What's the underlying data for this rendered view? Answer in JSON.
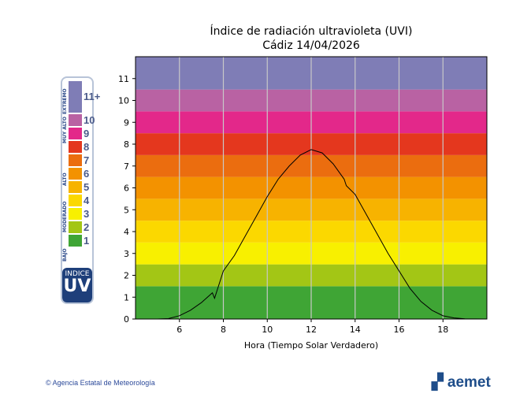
{
  "chart_data": {
    "type": "line",
    "title": "Índice de radiación ultravioleta (UVI)",
    "subtitle": "Cádiz 14/04/2026",
    "xlabel": "Hora (Tiempo Solar Verdadero)",
    "ylabel": "",
    "xlim": [
      4,
      20
    ],
    "ylim": [
      0,
      12
    ],
    "xticks": [
      6,
      8,
      10,
      12,
      14,
      16,
      18
    ],
    "yticks": [
      0,
      1,
      2,
      3,
      4,
      5,
      6,
      7,
      8,
      9,
      10,
      11
    ],
    "grid": "vertical",
    "line_color": "#000000",
    "x": [
      5,
      5.5,
      6,
      6.5,
      7,
      7.5,
      7.6,
      8,
      8.5,
      9,
      9.5,
      10,
      10.5,
      11,
      11.5,
      12,
      12.5,
      13,
      13.5,
      13.6,
      14,
      14.5,
      15,
      15.5,
      16,
      16.5,
      17,
      17.5,
      18,
      18.5,
      19,
      20
    ],
    "y": [
      0,
      0.02,
      0.15,
      0.4,
      0.75,
      1.2,
      0.95,
      2.2,
      2.9,
      3.8,
      4.7,
      5.6,
      6.4,
      7.0,
      7.5,
      7.75,
      7.6,
      7.1,
      6.4,
      6.1,
      5.7,
      4.8,
      3.9,
      3.0,
      2.2,
      1.4,
      0.8,
      0.4,
      0.15,
      0.05,
      0.01,
      0
    ],
    "bands": [
      {
        "from": 0,
        "to": 1.5,
        "color": "#3fa535"
      },
      {
        "from": 1.5,
        "to": 2.5,
        "color": "#a3c615"
      },
      {
        "from": 2.5,
        "to": 3.5,
        "color": "#f8f000"
      },
      {
        "from": 3.5,
        "to": 4.5,
        "color": "#fbd800"
      },
      {
        "from": 4.5,
        "to": 5.5,
        "color": "#f7b300"
      },
      {
        "from": 5.5,
        "to": 6.5,
        "color": "#f39200"
      },
      {
        "from": 6.5,
        "to": 7.5,
        "color": "#eb6d0f"
      },
      {
        "from": 7.5,
        "to": 8.5,
        "color": "#e4371e"
      },
      {
        "from": 8.5,
        "to": 9.5,
        "color": "#e3288a"
      },
      {
        "from": 9.5,
        "to": 10.5,
        "color": "#b962a3"
      },
      {
        "from": 10.5,
        "to": 12,
        "color": "#7f7db6"
      }
    ]
  },
  "legend": {
    "levels": [
      {
        "label": "11+",
        "color": "#7f7db6"
      },
      {
        "label": "10",
        "color": "#b962a3"
      },
      {
        "label": "9",
        "color": "#e3288a"
      },
      {
        "label": "8",
        "color": "#e4371e"
      },
      {
        "label": "7",
        "color": "#eb6d0f"
      },
      {
        "label": "6",
        "color": "#f39200"
      },
      {
        "label": "5",
        "color": "#f7b300"
      },
      {
        "label": "4",
        "color": "#fbd800"
      },
      {
        "label": "3",
        "color": "#f8f000"
      },
      {
        "label": "2",
        "color": "#a3c615"
      },
      {
        "label": "1",
        "color": "#3fa535"
      }
    ],
    "categories": [
      "EXTREMO",
      "MUY ALTO",
      "ALTO",
      "MODERADO",
      "BAJO"
    ],
    "badge_top": "INDICE",
    "badge_bottom": "UV"
  },
  "footer": {
    "copyright": "© Agencia Estatal de Meteorología",
    "logo": "aemet"
  }
}
